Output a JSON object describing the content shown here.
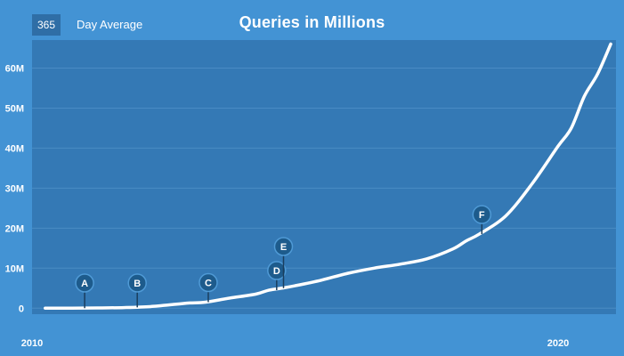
{
  "header": {
    "range_value": "365",
    "range_label": "Day Average"
  },
  "chart_data": {
    "type": "line",
    "title": "Queries in Millions",
    "xlabel": "",
    "ylabel": "",
    "xlim": [
      2010,
      2021.1
    ],
    "ylim": [
      -1.5,
      67
    ],
    "x_ticks": [
      {
        "value": 2010,
        "label": "2010"
      },
      {
        "value": 2020,
        "label": "2020"
      }
    ],
    "y_ticks": [
      {
        "value": 0,
        "label": "0"
      },
      {
        "value": 10,
        "label": "10M"
      },
      {
        "value": 20,
        "label": "20M"
      },
      {
        "value": 30,
        "label": "30M"
      },
      {
        "value": 40,
        "label": "40M"
      },
      {
        "value": 50,
        "label": "50M"
      },
      {
        "value": 60,
        "label": "60M"
      }
    ],
    "grid": true,
    "series": [
      {
        "points": [
          [
            2010.25,
            0.0
          ],
          [
            2010.75,
            0.0
          ],
          [
            2011.25,
            0.05
          ],
          [
            2011.75,
            0.15
          ],
          [
            2012.25,
            0.4
          ],
          [
            2012.75,
            1.0
          ],
          [
            2013.0,
            1.3
          ],
          [
            2013.3,
            1.5
          ],
          [
            2013.75,
            2.5
          ],
          [
            2014.25,
            3.5
          ],
          [
            2014.5,
            4.5
          ],
          [
            2014.75,
            5.0
          ],
          [
            2015.0,
            5.6
          ],
          [
            2015.5,
            7.0
          ],
          [
            2016.0,
            8.7
          ],
          [
            2016.5,
            10.0
          ],
          [
            2017.0,
            11.0
          ],
          [
            2017.5,
            12.3
          ],
          [
            2018.0,
            14.8
          ],
          [
            2018.25,
            16.8
          ],
          [
            2018.5,
            18.5
          ],
          [
            2019.0,
            23.0
          ],
          [
            2019.5,
            31.0
          ],
          [
            2020.0,
            40.5
          ],
          [
            2020.25,
            45.0
          ],
          [
            2020.5,
            53.0
          ],
          [
            2020.75,
            58.5
          ],
          [
            2021.0,
            66.0
          ]
        ]
      }
    ],
    "annotations": [
      {
        "label": "A",
        "x": 2011.0,
        "y": 0.0,
        "level": 0
      },
      {
        "label": "B",
        "x": 2012.0,
        "y": 0.2,
        "level": 0
      },
      {
        "label": "C",
        "x": 2013.35,
        "y": 1.5,
        "level": 0
      },
      {
        "label": "D",
        "x": 2014.65,
        "y": 4.5,
        "level": 0
      },
      {
        "label": "E",
        "x": 2014.78,
        "y": 5.0,
        "level": 1
      },
      {
        "label": "F",
        "x": 2018.55,
        "y": 18.5,
        "level": 0
      }
    ],
    "colors": {
      "background": "#4393d4",
      "plot": "#3479b5",
      "gridline": "#4a8cc4",
      "line": "#ffffff",
      "marker": "#1d5b8c"
    }
  }
}
